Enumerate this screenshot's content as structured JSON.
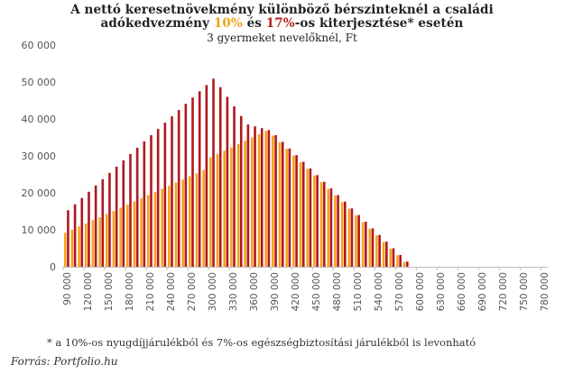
{
  "title": {
    "line1": "A nettó keresetnövekmény különböző bérszinteknél a családi",
    "line2_pre": "adókedvezmény ",
    "line2_hl1": "10%",
    "line2_mid": " és ",
    "line2_hl2": "17%",
    "line2_post": "-os kiterjesztése* esetén"
  },
  "subtitle": "3 gyermeket nevelőknél, Ft",
  "footnote": "* a 10%-os nyugdíjjárulékból és 7%-os egészségbiztosítási járulékból is levonható",
  "source": "Forrás: Portfolio.hu",
  "colors": {
    "s10": "#F5A31A",
    "s17": "#B0171F",
    "axis": "#bdbdbd"
  },
  "chart_data": {
    "type": "bar",
    "ylim": [
      0,
      60000
    ],
    "yticks": [
      0,
      10000,
      20000,
      30000,
      40000,
      50000,
      60000
    ],
    "ytick_labels": [
      "0",
      "10 000",
      "20 000",
      "30 000",
      "40 000",
      "50 000",
      "60 000"
    ],
    "x": [
      90000,
      100000,
      110000,
      120000,
      130000,
      140000,
      150000,
      160000,
      170000,
      180000,
      190000,
      200000,
      210000,
      220000,
      230000,
      240000,
      250000,
      260000,
      270000,
      280000,
      290000,
      300000,
      310000,
      320000,
      330000,
      340000,
      350000,
      360000,
      370000,
      380000,
      390000,
      400000,
      410000,
      420000,
      430000,
      440000,
      450000,
      460000,
      470000,
      480000,
      490000,
      500000,
      510000,
      520000,
      530000,
      540000,
      550000,
      560000,
      570000,
      580000,
      590000,
      600000,
      610000,
      620000,
      630000,
      640000,
      650000,
      660000,
      670000,
      680000,
      690000,
      700000,
      710000,
      720000,
      730000,
      740000,
      750000,
      760000,
      770000,
      780000
    ],
    "x_labels": [
      "90 000",
      "120 000",
      "150 000",
      "180 000",
      "210 000",
      "240 000",
      "270 000",
      "300 000",
      "330 000",
      "360 000",
      "390 000",
      "420 000",
      "450 000",
      "480 000",
      "510 000",
      "540 000",
      "570 000",
      "600 000",
      "630 000",
      "660 000",
      "690 000",
      "720 000",
      "750 000",
      "780 000"
    ],
    "x_label_values": [
      90000,
      120000,
      150000,
      180000,
      210000,
      240000,
      270000,
      300000,
      330000,
      360000,
      390000,
      420000,
      450000,
      480000,
      510000,
      540000,
      570000,
      600000,
      630000,
      660000,
      690000,
      720000,
      750000,
      780000
    ],
    "series": [
      {
        "name": "10%",
        "values": [
          9200,
          10000,
          10900,
          11700,
          12600,
          13400,
          14300,
          15100,
          16000,
          16800,
          17700,
          18500,
          19400,
          20200,
          21100,
          21900,
          22800,
          23600,
          24500,
          25300,
          26200,
          29600,
          30500,
          31400,
          32300,
          33200,
          34100,
          35000,
          35900,
          36800,
          35500,
          33700,
          31900,
          30100,
          28300,
          26500,
          24700,
          22900,
          21100,
          19300,
          17500,
          15700,
          13900,
          12100,
          10300,
          8500,
          6700,
          4900,
          3100,
          1300,
          0,
          0,
          0,
          0,
          0,
          0,
          0,
          0,
          0,
          0,
          0,
          0,
          0,
          0,
          0,
          0,
          0,
          0,
          0,
          0
        ]
      },
      {
        "name": "17%",
        "values": [
          15300,
          16900,
          18600,
          20300,
          22000,
          23700,
          25400,
          27100,
          28800,
          30500,
          32200,
          33900,
          35600,
          37300,
          39000,
          40700,
          42400,
          44100,
          45800,
          47500,
          49200,
          50900,
          48600,
          46000,
          43400,
          40800,
          38500,
          38000,
          37500,
          37000,
          35600,
          33800,
          32000,
          30200,
          28400,
          26600,
          24800,
          23000,
          21200,
          19400,
          17600,
          15800,
          14000,
          12200,
          10400,
          8600,
          6800,
          5000,
          3200,
          1400,
          0,
          0,
          0,
          0,
          0,
          0,
          0,
          0,
          0,
          0,
          0,
          0,
          0,
          0,
          0,
          0,
          0,
          0,
          0,
          0
        ]
      }
    ]
  }
}
